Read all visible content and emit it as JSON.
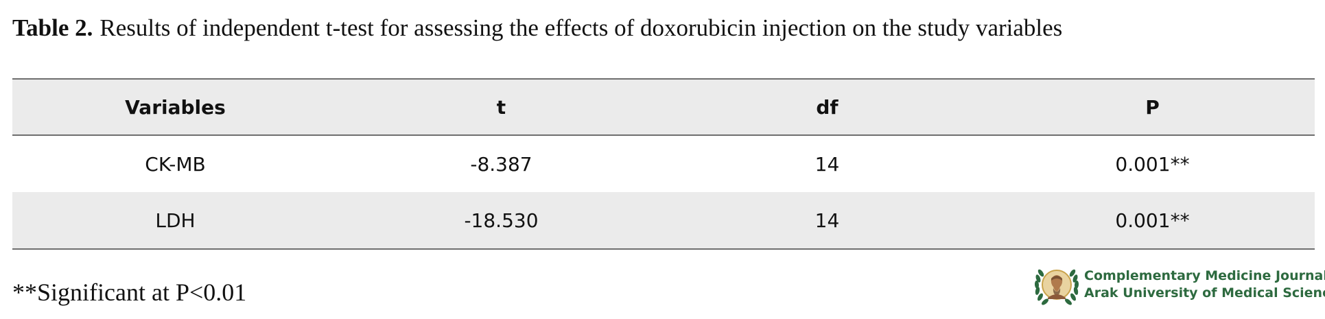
{
  "caption": {
    "label": "Table 2.",
    "text": "Results of independent t-test for assessing the effects of doxorubicin injection on the study variables"
  },
  "table": {
    "headers": [
      "Variables",
      "t",
      "df",
      "P"
    ],
    "rows": [
      [
        "CK-MB",
        "-8.387",
        "14",
        "0.001**"
      ],
      [
        "LDH",
        "-18.530",
        "14",
        "0.001**"
      ]
    ]
  },
  "footnote": "**Significant at P<0.01",
  "logo": {
    "line1": "Complementary Medicine Journal",
    "line2": "Arak University of Medical Sciences",
    "icon": "laurel-wreath-portrait-icon"
  },
  "colors": {
    "header_bg": "#ebebeb",
    "rule": "#6e6e6e",
    "logo_green": "#2d6a3f",
    "logo_gold": "#c9a24a"
  }
}
